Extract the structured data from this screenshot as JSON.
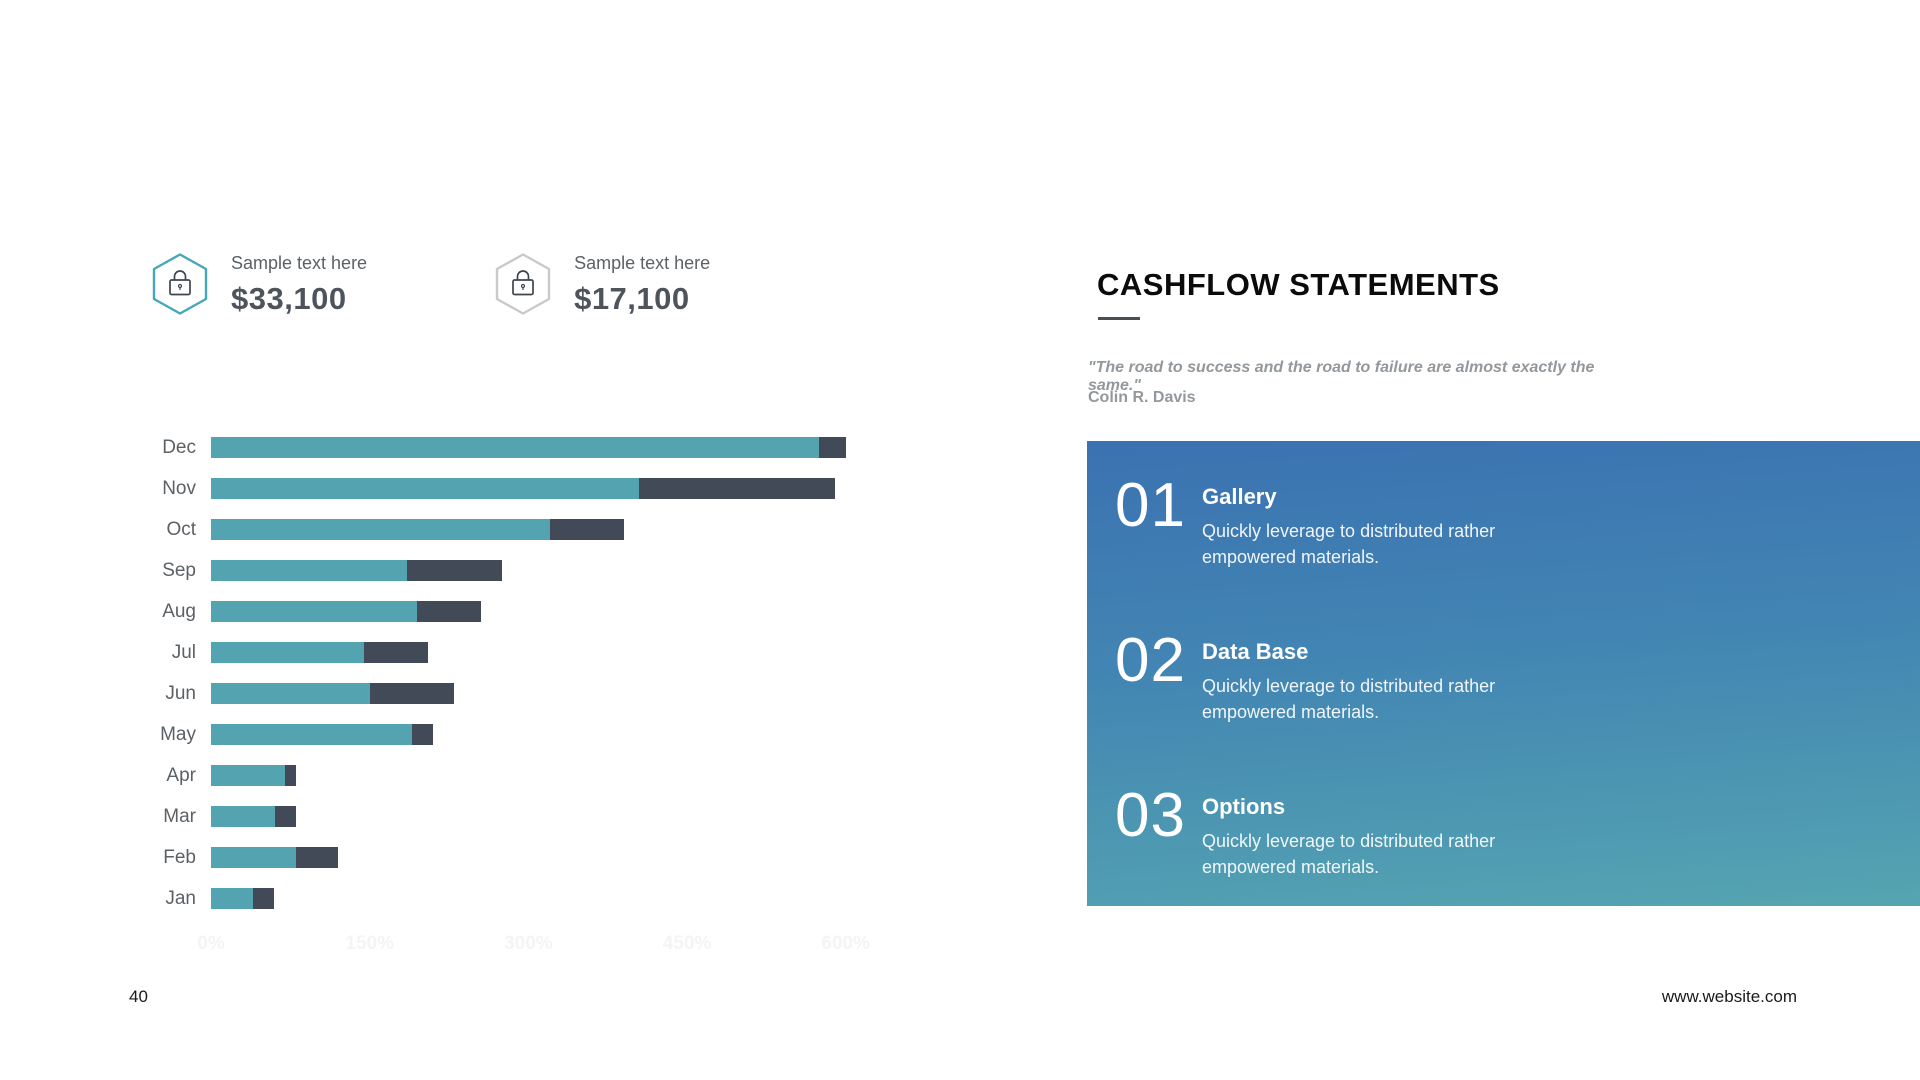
{
  "slide": {
    "page_number": "40",
    "website": "www.website.com"
  },
  "stats": [
    {
      "label": "Sample text here",
      "value": "$33,100",
      "icon": "lock-icon",
      "accent": "#46a6ba"
    },
    {
      "label": "Sample text here",
      "value": "$17,100",
      "icon": "lock-icon",
      "accent": "#c7cacd"
    }
  ],
  "chart_data": {
    "type": "bar",
    "orientation": "horizontal",
    "stacked": true,
    "title": "",
    "xlabel": "",
    "ylabel": "",
    "categories": [
      "Dec",
      "Nov",
      "Oct",
      "Sep",
      "Aug",
      "Jul",
      "Jun",
      "May",
      "Apr",
      "Mar",
      "Feb",
      "Jan"
    ],
    "series": [
      {
        "name": "series-1",
        "color": "#53a4b0",
        "values": [
          575,
          405,
          320,
          185,
          195,
          145,
          150,
          190,
          70,
          60,
          80,
          40
        ]
      },
      {
        "name": "series-2",
        "color": "#424957",
        "values": [
          25,
          185,
          70,
          90,
          60,
          60,
          80,
          20,
          10,
          20,
          40,
          20
        ]
      }
    ],
    "x_ticks": [
      "0%",
      "150%",
      "300%",
      "450%",
      "600%"
    ],
    "x_tick_values": [
      0,
      150,
      300,
      450,
      600
    ],
    "xlim": [
      0,
      600
    ],
    "grid": false,
    "legend": false,
    "tick_color": "#f3f4f6"
  },
  "content": {
    "title": "CASHFLOW STATEMENTS",
    "quote": "\"The road to success and the road to failure are almost exactly the same.\"",
    "author": "Colin R. Davis",
    "panel": {
      "gradient_top": "#3b72b1",
      "gradient_mid": "#4285b3",
      "gradient_bottom": "#55a5b1",
      "items": [
        {
          "number": "01",
          "title": "Gallery",
          "description": "Quickly leverage to distributed rather empowered materials."
        },
        {
          "number": "02",
          "title": "Data Base",
          "description": "Quickly leverage to distributed rather empowered materials."
        },
        {
          "number": "03",
          "title": "Options",
          "description": "Quickly leverage to distributed rather empowered materials."
        }
      ]
    }
  }
}
